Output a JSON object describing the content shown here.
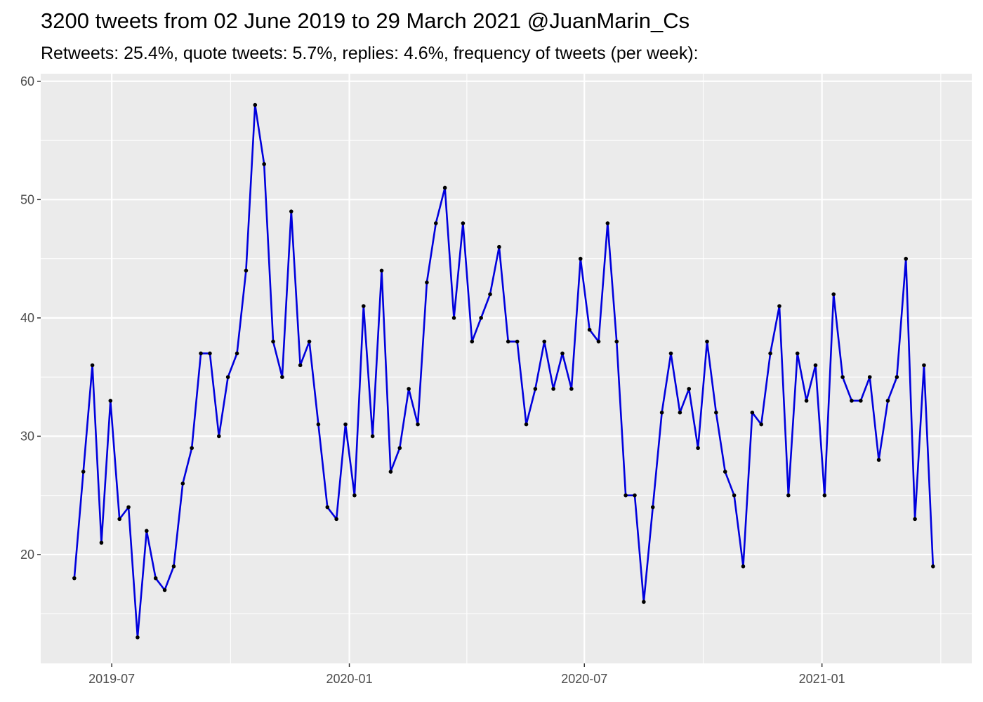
{
  "title": "3200 tweets from 02 June 2019 to 29 March 2021 @JuanMarin_Cs",
  "subtitle": "Retweets: 25.4%, quote tweets: 5.7%, replies: 4.6%, frequency of tweets (per week):",
  "colors": {
    "panel_background": "#ebebeb",
    "grid": "#ffffff",
    "line": "#0000dd",
    "point": "#000000",
    "tick_text": "#4d4d4d"
  },
  "chart_data": {
    "type": "line",
    "title": "3200 tweets from 02 June 2019 to 29 March 2021 @JuanMarin_Cs",
    "subtitle": "Retweets: 25.4%, quote tweets: 5.7%, replies: 4.6%, frequency of tweets (per week):",
    "xlabel": "",
    "ylabel": "",
    "x_axis": {
      "type": "date",
      "range": [
        "2019-05-07",
        "2021-04-27"
      ],
      "tick_values": [
        "2019-07-01",
        "2020-01-01",
        "2020-07-01",
        "2021-01-01"
      ],
      "tick_labels": [
        "2019-07",
        "2020-01",
        "2020-07",
        "2021-01"
      ]
    },
    "y_axis": {
      "range": [
        10.8,
        60
      ],
      "ticks": [
        20,
        30,
        40,
        50,
        60
      ]
    },
    "grid": true,
    "legend": "none",
    "x": [
      "2019-06-02",
      "2019-06-09",
      "2019-06-16",
      "2019-06-23",
      "2019-06-30",
      "2019-07-07",
      "2019-07-14",
      "2019-07-21",
      "2019-07-28",
      "2019-08-04",
      "2019-08-11",
      "2019-08-18",
      "2019-08-25",
      "2019-09-01",
      "2019-09-08",
      "2019-09-15",
      "2019-09-22",
      "2019-09-29",
      "2019-10-06",
      "2019-10-13",
      "2019-10-20",
      "2019-10-27",
      "2019-11-03",
      "2019-11-10",
      "2019-11-17",
      "2019-11-24",
      "2019-12-01",
      "2019-12-08",
      "2019-12-15",
      "2019-12-22",
      "2019-12-29",
      "2020-01-05",
      "2020-01-12",
      "2020-01-19",
      "2020-01-26",
      "2020-02-02",
      "2020-02-09",
      "2020-02-16",
      "2020-02-23",
      "2020-03-01",
      "2020-03-08",
      "2020-03-15",
      "2020-03-22",
      "2020-03-29",
      "2020-04-05",
      "2020-04-12",
      "2020-04-19",
      "2020-04-26",
      "2020-05-03",
      "2020-05-10",
      "2020-05-17",
      "2020-05-24",
      "2020-05-31",
      "2020-06-07",
      "2020-06-14",
      "2020-06-21",
      "2020-06-28",
      "2020-07-05",
      "2020-07-12",
      "2020-07-19",
      "2020-07-26",
      "2020-08-02",
      "2020-08-09",
      "2020-08-16",
      "2020-08-23",
      "2020-08-30",
      "2020-09-06",
      "2020-09-13",
      "2020-09-20",
      "2020-09-27",
      "2020-10-04",
      "2020-10-11",
      "2020-10-18",
      "2020-10-25",
      "2020-11-01",
      "2020-11-08",
      "2020-11-15",
      "2020-11-22",
      "2020-11-29",
      "2020-12-06",
      "2020-12-13",
      "2020-12-20",
      "2020-12-27",
      "2021-01-03",
      "2021-01-10",
      "2021-01-17",
      "2021-01-24",
      "2021-01-31",
      "2021-02-07",
      "2021-02-14",
      "2021-02-21",
      "2021-02-28",
      "2021-03-07",
      "2021-03-14",
      "2021-03-21",
      "2021-03-28"
    ],
    "series": [
      {
        "values": [
          18,
          27,
          36,
          21,
          33,
          23,
          24,
          13,
          22,
          18,
          17,
          19,
          26,
          29,
          37,
          37,
          30,
          35,
          37,
          44,
          58,
          53,
          38,
          35,
          49,
          36,
          38,
          31,
          24,
          23,
          31,
          25,
          41,
          30,
          44,
          27,
          29,
          34,
          31,
          43,
          48,
          51,
          40,
          48,
          38,
          40,
          42,
          46,
          38,
          38,
          31,
          34,
          38,
          34,
          37,
          34,
          45,
          39,
          38,
          48,
          38,
          25,
          25,
          16,
          24,
          32,
          37,
          32,
          34,
          29,
          38,
          32,
          27,
          25,
          19,
          32,
          31,
          37,
          41,
          25,
          37,
          33,
          36,
          25,
          42,
          35,
          33,
          33,
          35,
          28,
          33,
          35,
          45,
          23,
          36,
          19
        ]
      }
    ]
  }
}
